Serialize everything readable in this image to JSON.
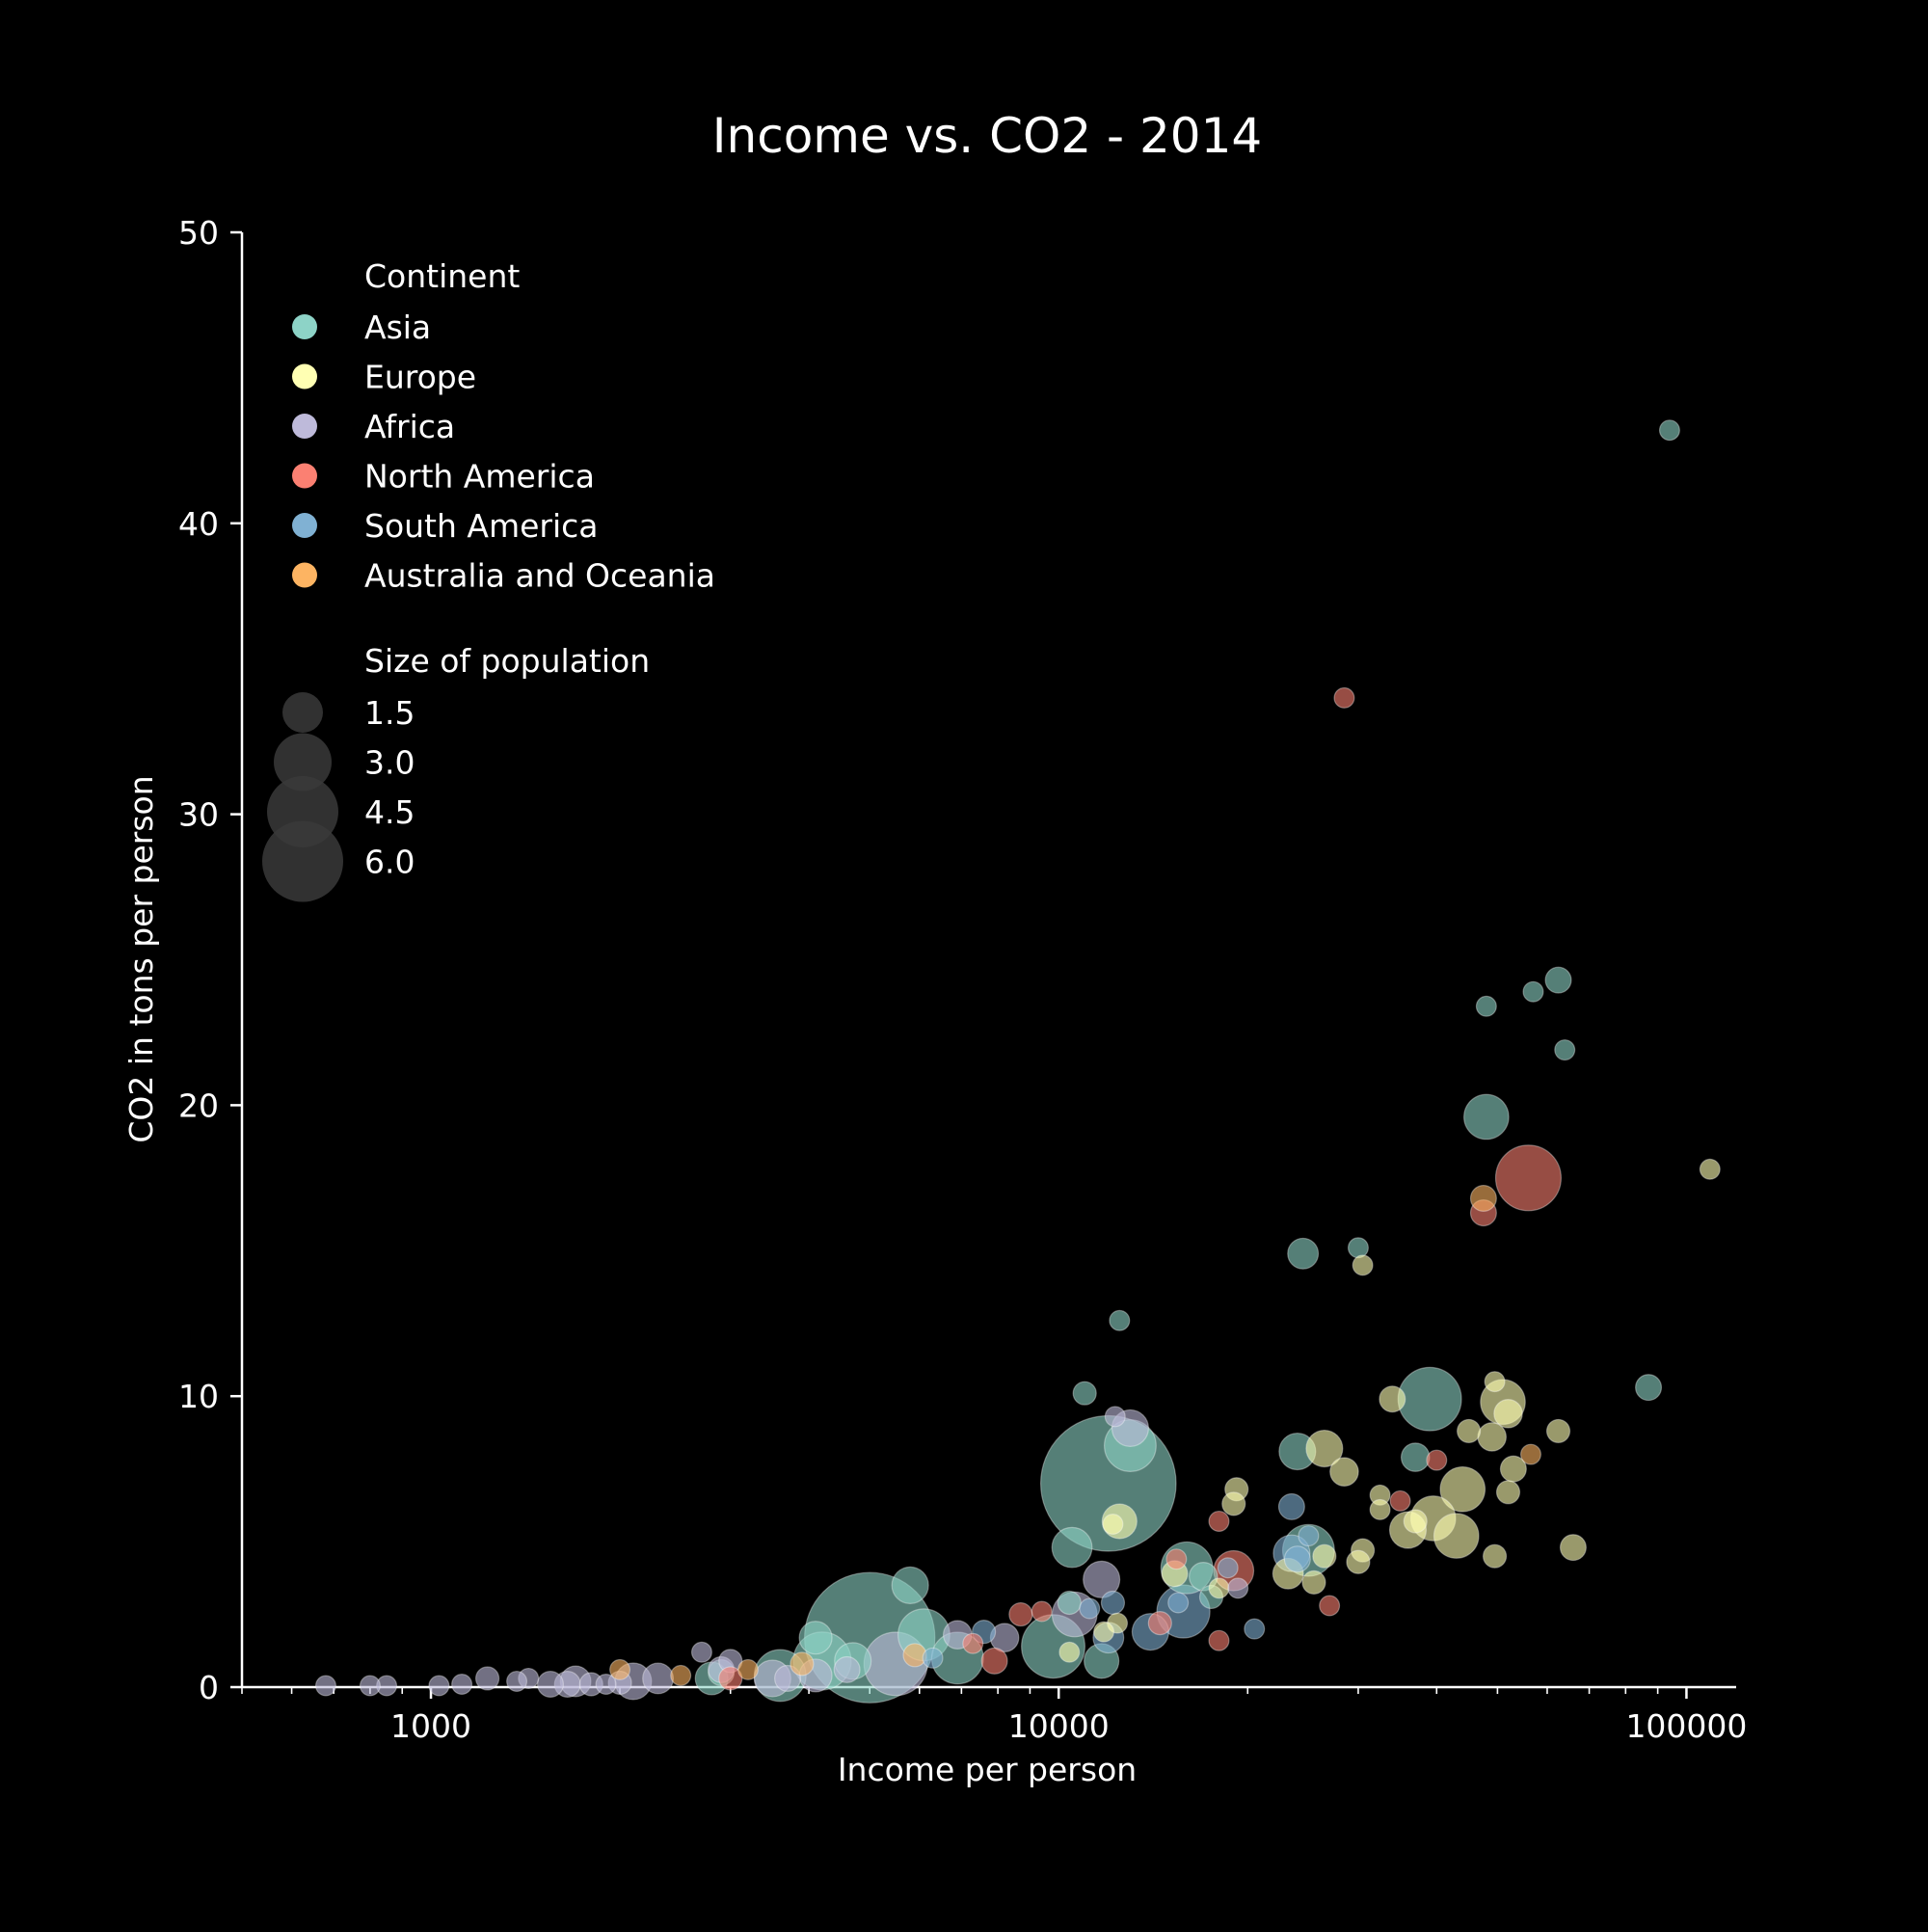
{
  "chart_data": {
    "type": "scatter",
    "title": "Income vs. CO2 - 2014",
    "xlabel": "Income per person",
    "ylabel": "CO2 in tons per person",
    "x_scale": "log",
    "xlim": [
      500,
      120000
    ],
    "ylim": [
      0,
      50
    ],
    "x_ticks": [
      1000,
      10000,
      100000
    ],
    "x_tick_labels": [
      "1000",
      "10000",
      "100000"
    ],
    "y_ticks": [
      0,
      10,
      20,
      30,
      40,
      50
    ],
    "y_tick_labels": [
      "0",
      "10",
      "20",
      "30",
      "40",
      "50"
    ],
    "grid": false,
    "legend_position": "top-left",
    "legend": {
      "continent_title": "Continent",
      "size_title": "Size of population",
      "size_values": [
        1.5,
        3.0,
        4.5,
        6.0
      ],
      "size_labels": [
        "1.5",
        "3.0",
        "4.5",
        "6.0"
      ]
    },
    "series": [
      {
        "name": "Asia",
        "color": "#8dd3c7",
        "points": [
          {
            "x": 94000,
            "y": 43.2,
            "s": 0.03
          },
          {
            "x": 62500,
            "y": 24.3,
            "s": 0.05
          },
          {
            "x": 57000,
            "y": 23.9,
            "s": 0.03
          },
          {
            "x": 48000,
            "y": 23.4,
            "s": 0.03
          },
          {
            "x": 64000,
            "y": 21.9,
            "s": 0.03
          },
          {
            "x": 48000,
            "y": 19.6,
            "s": 0.15
          },
          {
            "x": 24500,
            "y": 14.9,
            "s": 0.07
          },
          {
            "x": 30000,
            "y": 15.1,
            "s": 0.03
          },
          {
            "x": 12500,
            "y": 12.6,
            "s": 0.03
          },
          {
            "x": 87000,
            "y": 10.3,
            "s": 0.05
          },
          {
            "x": 11000,
            "y": 10.1,
            "s": 0.04
          },
          {
            "x": 39000,
            "y": 9.9,
            "s": 0.3
          },
          {
            "x": 13000,
            "y": 8.3,
            "s": 0.2
          },
          {
            "x": 24000,
            "y": 8.1,
            "s": 0.1
          },
          {
            "x": 37000,
            "y": 7.9,
            "s": 0.06
          },
          {
            "x": 12000,
            "y": 7.0,
            "s": 1.37
          },
          {
            "x": 10500,
            "y": 4.8,
            "s": 0.12
          },
          {
            "x": 16000,
            "y": 4.1,
            "s": 0.2
          },
          {
            "x": 25000,
            "y": 4.7,
            "s": 0.2
          },
          {
            "x": 17000,
            "y": 3.8,
            "s": 0.06
          },
          {
            "x": 5800,
            "y": 3.5,
            "s": 0.1
          },
          {
            "x": 17500,
            "y": 3.1,
            "s": 0.04
          },
          {
            "x": 10400,
            "y": 2.9,
            "s": 0.04
          },
          {
            "x": 6100,
            "y": 1.8,
            "s": 0.2
          },
          {
            "x": 5000,
            "y": 1.7,
            "s": 1.27
          },
          {
            "x": 4100,
            "y": 1.7,
            "s": 0.08
          },
          {
            "x": 9800,
            "y": 1.4,
            "s": 0.3
          },
          {
            "x": 6900,
            "y": 1.0,
            "s": 0.2
          },
          {
            "x": 4200,
            "y": 0.9,
            "s": 0.25
          },
          {
            "x": 11700,
            "y": 0.9,
            "s": 0.09
          },
          {
            "x": 4700,
            "y": 0.9,
            "s": 0.1
          },
          {
            "x": 3600,
            "y": 0.4,
            "s": 0.2
          },
          {
            "x": 2800,
            "y": 0.3,
            "s": 0.08
          },
          {
            "x": 2900,
            "y": 0.5,
            "s": 0.05
          }
        ]
      },
      {
        "name": "Europe",
        "color": "#ffffb3",
        "points": [
          {
            "x": 109000,
            "y": 17.8,
            "s": 0.03
          },
          {
            "x": 30500,
            "y": 14.5,
            "s": 0.03
          },
          {
            "x": 49500,
            "y": 10.5,
            "s": 0.03
          },
          {
            "x": 34000,
            "y": 9.9,
            "s": 0.05
          },
          {
            "x": 51000,
            "y": 9.8,
            "s": 0.15
          },
          {
            "x": 52000,
            "y": 9.4,
            "s": 0.06
          },
          {
            "x": 45000,
            "y": 8.8,
            "s": 0.04
          },
          {
            "x": 49000,
            "y": 8.6,
            "s": 0.06
          },
          {
            "x": 62500,
            "y": 8.8,
            "s": 0.04
          },
          {
            "x": 26500,
            "y": 8.2,
            "s": 0.1
          },
          {
            "x": 28500,
            "y": 7.4,
            "s": 0.06
          },
          {
            "x": 53000,
            "y": 7.5,
            "s": 0.05
          },
          {
            "x": 44000,
            "y": 6.8,
            "s": 0.15
          },
          {
            "x": 52000,
            "y": 6.7,
            "s": 0.04
          },
          {
            "x": 19200,
            "y": 6.8,
            "s": 0.04
          },
          {
            "x": 32500,
            "y": 6.6,
            "s": 0.03
          },
          {
            "x": 19000,
            "y": 6.3,
            "s": 0.04
          },
          {
            "x": 32500,
            "y": 6.1,
            "s": 0.03
          },
          {
            "x": 39500,
            "y": 5.8,
            "s": 0.15
          },
          {
            "x": 37000,
            "y": 5.7,
            "s": 0.04
          },
          {
            "x": 36000,
            "y": 5.4,
            "s": 0.1
          },
          {
            "x": 43000,
            "y": 5.2,
            "s": 0.15
          },
          {
            "x": 12500,
            "y": 5.7,
            "s": 0.09
          },
          {
            "x": 12200,
            "y": 5.6,
            "s": 0.03
          },
          {
            "x": 66000,
            "y": 4.8,
            "s": 0.05
          },
          {
            "x": 30500,
            "y": 4.7,
            "s": 0.04
          },
          {
            "x": 26500,
            "y": 4.5,
            "s": 0.04
          },
          {
            "x": 49500,
            "y": 4.5,
            "s": 0.04
          },
          {
            "x": 30000,
            "y": 4.3,
            "s": 0.04
          },
          {
            "x": 23200,
            "y": 3.9,
            "s": 0.07
          },
          {
            "x": 15300,
            "y": 3.9,
            "s": 0.05
          },
          {
            "x": 25500,
            "y": 3.6,
            "s": 0.04
          },
          {
            "x": 18000,
            "y": 3.4,
            "s": 0.03
          },
          {
            "x": 12400,
            "y": 2.2,
            "s": 0.03
          },
          {
            "x": 11800,
            "y": 1.9,
            "s": 0.03
          },
          {
            "x": 10400,
            "y": 1.2,
            "s": 0.03
          }
        ]
      },
      {
        "name": "Africa",
        "color": "#bebada",
        "points": [
          {
            "x": 12300,
            "y": 9.3,
            "s": 0.03
          },
          {
            "x": 13000,
            "y": 8.9,
            "s": 0.1
          },
          {
            "x": 11700,
            "y": 3.7,
            "s": 0.1
          },
          {
            "x": 10600,
            "y": 2.5,
            "s": 0.15
          },
          {
            "x": 19300,
            "y": 3.4,
            "s": 0.03
          },
          {
            "x": 8200,
            "y": 1.7,
            "s": 0.06
          },
          {
            "x": 6900,
            "y": 1.8,
            "s": 0.06
          },
          {
            "x": 5500,
            "y": 0.8,
            "s": 0.3
          },
          {
            "x": 4600,
            "y": 0.6,
            "s": 0.05
          },
          {
            "x": 4100,
            "y": 0.4,
            "s": 0.08
          },
          {
            "x": 3500,
            "y": 0.3,
            "s": 0.1
          },
          {
            "x": 3700,
            "y": 0.3,
            "s": 0.05
          },
          {
            "x": 3000,
            "y": 0.9,
            "s": 0.04
          },
          {
            "x": 2700,
            "y": 1.2,
            "s": 0.03
          },
          {
            "x": 2900,
            "y": 0.6,
            "s": 0.05
          },
          {
            "x": 2300,
            "y": 0.3,
            "s": 0.07
          },
          {
            "x": 2100,
            "y": 0.2,
            "s": 0.1
          },
          {
            "x": 1700,
            "y": 0.2,
            "s": 0.07
          },
          {
            "x": 1650,
            "y": 0.1,
            "s": 0.05
          },
          {
            "x": 1550,
            "y": 0.1,
            "s": 0.05
          },
          {
            "x": 1430,
            "y": 0.3,
            "s": 0.03
          },
          {
            "x": 1370,
            "y": 0.2,
            "s": 0.03
          },
          {
            "x": 1230,
            "y": 0.3,
            "s": 0.04
          },
          {
            "x": 1120,
            "y": 0.1,
            "s": 0.03
          },
          {
            "x": 1030,
            "y": 0.05,
            "s": 0.03
          },
          {
            "x": 850,
            "y": 0.05,
            "s": 0.03
          },
          {
            "x": 800,
            "y": 0.05,
            "s": 0.03
          },
          {
            "x": 680,
            "y": 0.05,
            "s": 0.03
          },
          {
            "x": 1800,
            "y": 0.1,
            "s": 0.04
          },
          {
            "x": 1900,
            "y": 0.1,
            "s": 0.03
          },
          {
            "x": 2000,
            "y": 0.15,
            "s": 0.04
          }
        ]
      },
      {
        "name": "North America",
        "color": "#fb8072",
        "points": [
          {
            "x": 28500,
            "y": 34.0,
            "s": 0.03
          },
          {
            "x": 56000,
            "y": 17.5,
            "s": 0.32
          },
          {
            "x": 47500,
            "y": 16.3,
            "s": 0.05
          },
          {
            "x": 40000,
            "y": 7.8,
            "s": 0.03
          },
          {
            "x": 35000,
            "y": 6.4,
            "s": 0.03
          },
          {
            "x": 18000,
            "y": 5.7,
            "s": 0.03
          },
          {
            "x": 19000,
            "y": 4.0,
            "s": 0.12
          },
          {
            "x": 15400,
            "y": 4.4,
            "s": 0.03
          },
          {
            "x": 27000,
            "y": 2.8,
            "s": 0.03
          },
          {
            "x": 8700,
            "y": 2.5,
            "s": 0.04
          },
          {
            "x": 9400,
            "y": 2.6,
            "s": 0.03
          },
          {
            "x": 14500,
            "y": 2.2,
            "s": 0.04
          },
          {
            "x": 18000,
            "y": 1.6,
            "s": 0.03
          },
          {
            "x": 7300,
            "y": 1.5,
            "s": 0.03
          },
          {
            "x": 7900,
            "y": 0.9,
            "s": 0.05
          },
          {
            "x": 3000,
            "y": 0.3,
            "s": 0.04
          }
        ]
      },
      {
        "name": "South America",
        "color": "#80b1d3",
        "points": [
          {
            "x": 23500,
            "y": 6.2,
            "s": 0.05
          },
          {
            "x": 23500,
            "y": 4.6,
            "s": 0.1
          },
          {
            "x": 24000,
            "y": 4.4,
            "s": 0.05
          },
          {
            "x": 25000,
            "y": 5.2,
            "s": 0.03
          },
          {
            "x": 18600,
            "y": 4.1,
            "s": 0.03
          },
          {
            "x": 15800,
            "y": 2.6,
            "s": 0.21
          },
          {
            "x": 15500,
            "y": 2.9,
            "s": 0.03
          },
          {
            "x": 12200,
            "y": 2.9,
            "s": 0.04
          },
          {
            "x": 11200,
            "y": 2.7,
            "s": 0.03
          },
          {
            "x": 20500,
            "y": 2.0,
            "s": 0.03
          },
          {
            "x": 14000,
            "y": 1.9,
            "s": 0.1
          },
          {
            "x": 12000,
            "y": 1.7,
            "s": 0.07
          },
          {
            "x": 7600,
            "y": 1.9,
            "s": 0.04
          },
          {
            "x": 6300,
            "y": 1.0,
            "s": 0.03
          }
        ]
      },
      {
        "name": "Australia and Oceania",
        "color": "#fdb462",
        "points": [
          {
            "x": 47500,
            "y": 16.8,
            "s": 0.05
          },
          {
            "x": 56500,
            "y": 8.0,
            "s": 0.03
          },
          {
            "x": 5900,
            "y": 1.1,
            "s": 0.04
          },
          {
            "x": 3900,
            "y": 0.8,
            "s": 0.04
          },
          {
            "x": 3200,
            "y": 0.6,
            "s": 0.03
          },
          {
            "x": 2500,
            "y": 0.4,
            "s": 0.03
          },
          {
            "x": 2000,
            "y": 0.6,
            "s": 0.03
          }
        ]
      }
    ]
  }
}
